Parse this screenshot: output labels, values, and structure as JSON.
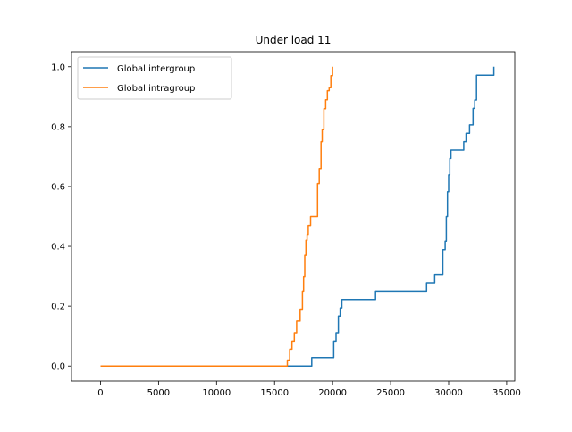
{
  "chart_data": {
    "type": "line",
    "title": "Under load 11",
    "xlabel": "",
    "ylabel": "",
    "xlim": [
      -2500,
      35700
    ],
    "ylim": [
      -0.05,
      1.05
    ],
    "xticks": [
      0,
      5000,
      10000,
      15000,
      20000,
      25000,
      30000,
      35000
    ],
    "yticks": [
      0.0,
      0.2,
      0.4,
      0.6,
      0.8,
      1.0
    ],
    "xtick_labels": [
      "0",
      "5000",
      "10000",
      "15000",
      "20000",
      "25000",
      "30000",
      "35000"
    ],
    "ytick_labels": [
      "0.0",
      "0.2",
      "0.4",
      "0.6",
      "0.8",
      "1.0"
    ],
    "grid": false,
    "legend_position": "top-left",
    "series": [
      {
        "name": "Global intergroup",
        "color": "#1f77b4",
        "step": true,
        "x": [
          0,
          18200,
          20100,
          20300,
          20500,
          20650,
          20800,
          23700,
          28100,
          28800,
          29500,
          29700,
          29800,
          29900,
          30000,
          30100,
          30200,
          30300,
          31300,
          31500,
          31800,
          32100,
          32250,
          32400,
          33850,
          33900
        ],
        "y": [
          0,
          0.028,
          0.083,
          0.111,
          0.167,
          0.194,
          0.222,
          0.25,
          0.278,
          0.306,
          0.389,
          0.417,
          0.5,
          0.583,
          0.639,
          0.694,
          0.722,
          0.722,
          0.75,
          0.778,
          0.806,
          0.861,
          0.889,
          0.972,
          0.972,
          1.0
        ]
      },
      {
        "name": "Global intragroup",
        "color": "#ff7f0e",
        "step": true,
        "x": [
          0,
          16100,
          16300,
          16500,
          16700,
          16900,
          17200,
          17400,
          17500,
          17600,
          17700,
          17800,
          17900,
          18100,
          18400,
          18700,
          18850,
          19000,
          19100,
          19250,
          19400,
          19550,
          19700,
          19850,
          20000
        ],
        "y": [
          0,
          0.02,
          0.056,
          0.083,
          0.111,
          0.15,
          0.19,
          0.25,
          0.3,
          0.37,
          0.42,
          0.44,
          0.47,
          0.5,
          0.5,
          0.61,
          0.66,
          0.75,
          0.79,
          0.86,
          0.89,
          0.92,
          0.93,
          0.97,
          1.0
        ]
      }
    ]
  }
}
